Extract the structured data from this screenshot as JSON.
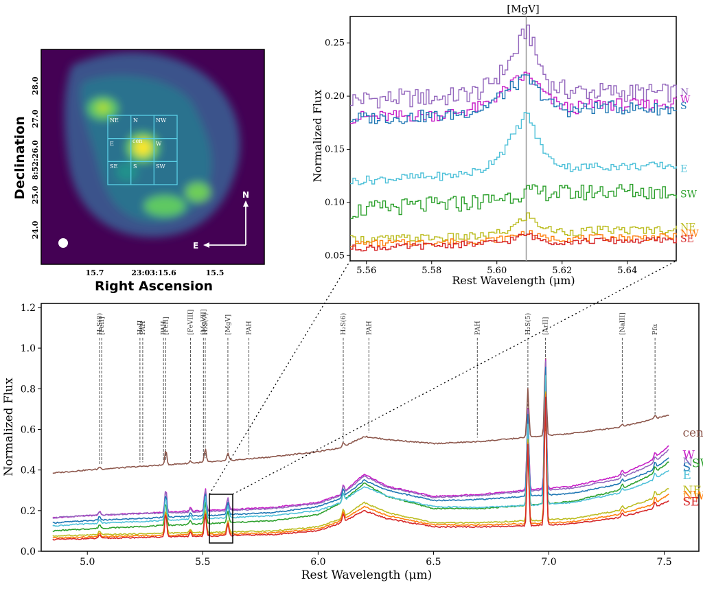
{
  "image_panel": {
    "ylabel": "Declination",
    "xlabel": "Right Ascension",
    "yticks": [
      "28.0",
      "27.0",
      "8:52:26.0",
      "25.0",
      "24.0"
    ],
    "xticks": [
      "15.7",
      "23:03:15.6",
      "15.5"
    ],
    "grid_labels": [
      "NE",
      "N",
      "NW",
      "E",
      "cen",
      "W",
      "SE",
      "S",
      "SW"
    ],
    "compass": {
      "north": "N",
      "east": "E"
    },
    "colors": {
      "background": "#440154",
      "grid": "#5ad0e6",
      "peak": "#fde725"
    }
  },
  "zoom_panel": {
    "title": "[MgV]",
    "xlabel": "Rest Wavelength (μm)",
    "ylabel": "Normalized Flux",
    "xlim": [
      5.555,
      5.655
    ],
    "ylim": [
      0.045,
      0.275
    ],
    "xticks": [
      "5.56",
      "5.58",
      "5.60",
      "5.62",
      "5.64"
    ],
    "yticks": [
      "0.05",
      "0.10",
      "0.15",
      "0.20",
      "0.25"
    ],
    "line_center": 5.609
  },
  "main_panel": {
    "xlabel": "Rest Wavelength (μm)",
    "ylabel": "Normalized Flux",
    "xlim": [
      4.8,
      7.65
    ],
    "ylim": [
      0.0,
      1.22
    ],
    "xticks": [
      "5.0",
      "5.5",
      "6.0",
      "6.5",
      "7.0",
      "7.5"
    ],
    "yticks": [
      "0.0",
      "0.2",
      "0.4",
      "0.6",
      "0.8",
      "1.0",
      "1.2"
    ],
    "lines": [
      {
        "label": "H₂S(8)",
        "x": 5.053
      },
      {
        "label": "[FeII]",
        "x": 5.062
      },
      {
        "label": "HeII",
        "x": 5.228
      },
      {
        "label": "PAH",
        "x": 5.24
      },
      {
        "label": "PAH",
        "x": 5.33
      },
      {
        "label": "[FeII]",
        "x": 5.34
      },
      {
        "label": "[FeVIII]",
        "x": 5.447
      },
      {
        "label": "[MgVII]",
        "x": 5.503
      },
      {
        "label": "H₂S(7)",
        "x": 5.511
      },
      {
        "label": "[MgV]",
        "x": 5.609
      },
      {
        "label": "PAH",
        "x": 5.7
      },
      {
        "label": "H₂S(6)",
        "x": 6.109
      },
      {
        "label": "PAH",
        "x": 6.22
      },
      {
        "label": "PAH",
        "x": 6.69
      },
      {
        "label": "H₂S(5)",
        "x": 6.909
      },
      {
        "label": "[ArII]",
        "x": 6.985
      },
      {
        "label": "[NaIII]",
        "x": 7.318
      },
      {
        "label": "Pfα",
        "x": 7.46
      }
    ]
  },
  "chart_data": [
    {
      "type": "line",
      "title": "[MgV]",
      "xlabel": "Rest Wavelength (μm)",
      "ylabel": "Normalized Flux",
      "xlim": [
        5.555,
        5.655
      ],
      "ylim": [
        0.045,
        0.275
      ],
      "x": [
        5.555,
        5.57,
        5.585,
        5.595,
        5.602,
        5.606,
        5.609,
        5.612,
        5.616,
        5.622,
        5.632,
        5.645,
        5.655
      ],
      "series": [
        {
          "name": "N",
          "color": "#9467bd",
          "values": [
            0.197,
            0.198,
            0.199,
            0.205,
            0.225,
            0.245,
            0.265,
            0.235,
            0.21,
            0.205,
            0.204,
            0.203,
            0.203
          ]
        },
        {
          "name": "W",
          "color": "#c71ec7",
          "values": [
            0.18,
            0.181,
            0.183,
            0.19,
            0.205,
            0.215,
            0.22,
            0.21,
            0.196,
            0.188,
            0.193,
            0.191,
            0.195
          ]
        },
        {
          "name": "S",
          "color": "#1f77b4",
          "values": [
            0.179,
            0.18,
            0.182,
            0.188,
            0.203,
            0.212,
            0.217,
            0.206,
            0.193,
            0.186,
            0.19,
            0.188,
            0.188
          ]
        },
        {
          "name": "E",
          "color": "#4fc1d9",
          "values": [
            0.12,
            0.123,
            0.125,
            0.13,
            0.15,
            0.17,
            0.185,
            0.16,
            0.14,
            0.133,
            0.134,
            0.134,
            0.135
          ]
        },
        {
          "name": "SW",
          "color": "#2ca02c",
          "values": [
            0.092,
            0.096,
            0.098,
            0.101,
            0.105,
            0.108,
            0.11,
            0.108,
            0.11,
            0.108,
            0.111,
            0.11,
            0.11
          ]
        },
        {
          "name": "NE",
          "color": "#bcbd22",
          "values": [
            0.065,
            0.066,
            0.067,
            0.068,
            0.072,
            0.08,
            0.088,
            0.08,
            0.074,
            0.072,
            0.074,
            0.074,
            0.075
          ]
        },
        {
          "name": "NW",
          "color": "#ff7f0e",
          "values": [
            0.061,
            0.062,
            0.063,
            0.064,
            0.066,
            0.07,
            0.072,
            0.068,
            0.066,
            0.066,
            0.067,
            0.067,
            0.068
          ]
        },
        {
          "name": "SE",
          "color": "#d62728",
          "values": [
            0.057,
            0.058,
            0.06,
            0.061,
            0.063,
            0.067,
            0.07,
            0.066,
            0.063,
            0.063,
            0.064,
            0.064,
            0.065
          ]
        }
      ]
    },
    {
      "type": "line",
      "title": "",
      "xlabel": "Rest Wavelength (μm)",
      "ylabel": "Normalized Flux",
      "xlim": [
        4.8,
        7.65
      ],
      "ylim": [
        0.0,
        1.22
      ],
      "x": [
        4.85,
        5.0,
        5.2,
        5.4,
        5.6,
        5.8,
        6.0,
        6.1,
        6.2,
        6.3,
        6.5,
        6.7,
        6.9,
        7.1,
        7.3,
        7.45,
        7.52
      ],
      "series": [
        {
          "name": "cen",
          "color": "#8c564b",
          "values": [
            0.385,
            0.4,
            0.415,
            0.43,
            0.445,
            0.465,
            0.49,
            0.51,
            0.565,
            0.55,
            0.53,
            0.54,
            0.56,
            0.58,
            0.61,
            0.65,
            0.67
          ]
        },
        {
          "name": "W",
          "color": "#c71ec7",
          "values": [
            0.165,
            0.175,
            0.185,
            0.195,
            0.205,
            0.215,
            0.24,
            0.28,
            0.38,
            0.32,
            0.27,
            0.28,
            0.3,
            0.32,
            0.37,
            0.45,
            0.52
          ]
        },
        {
          "name": "N",
          "color": "#9467bd",
          "values": [
            0.165,
            0.175,
            0.185,
            0.19,
            0.2,
            0.21,
            0.235,
            0.275,
            0.37,
            0.315,
            0.265,
            0.275,
            0.295,
            0.31,
            0.355,
            0.43,
            0.5
          ]
        },
        {
          "name": "S",
          "color": "#1f77b4",
          "values": [
            0.14,
            0.15,
            0.16,
            0.17,
            0.18,
            0.19,
            0.22,
            0.26,
            0.35,
            0.3,
            0.25,
            0.255,
            0.27,
            0.285,
            0.33,
            0.4,
            0.46
          ]
        },
        {
          "name": "SW",
          "color": "#2ca02c",
          "values": [
            0.1,
            0.11,
            0.12,
            0.13,
            0.14,
            0.15,
            0.18,
            0.24,
            0.335,
            0.27,
            0.21,
            0.21,
            0.225,
            0.245,
            0.3,
            0.38,
            0.44
          ]
        },
        {
          "name": "E",
          "color": "#4fc1d9",
          "values": [
            0.125,
            0.135,
            0.145,
            0.155,
            0.165,
            0.175,
            0.2,
            0.24,
            0.32,
            0.27,
            0.22,
            0.215,
            0.225,
            0.24,
            0.285,
            0.35,
            0.4
          ]
        },
        {
          "name": "NE",
          "color": "#bcbd22",
          "values": [
            0.075,
            0.08,
            0.085,
            0.09,
            0.095,
            0.1,
            0.12,
            0.16,
            0.24,
            0.19,
            0.14,
            0.14,
            0.15,
            0.16,
            0.2,
            0.26,
            0.31
          ]
        },
        {
          "name": "NW",
          "color": "#ff7f0e",
          "values": [
            0.065,
            0.07,
            0.075,
            0.08,
            0.085,
            0.09,
            0.11,
            0.15,
            0.22,
            0.175,
            0.13,
            0.13,
            0.135,
            0.145,
            0.18,
            0.23,
            0.28
          ]
        },
        {
          "name": "SE",
          "color": "#d62728",
          "values": [
            0.058,
            0.062,
            0.067,
            0.072,
            0.077,
            0.082,
            0.1,
            0.14,
            0.2,
            0.16,
            0.12,
            0.12,
            0.125,
            0.135,
            0.165,
            0.21,
            0.25
          ]
        }
      ]
    }
  ]
}
